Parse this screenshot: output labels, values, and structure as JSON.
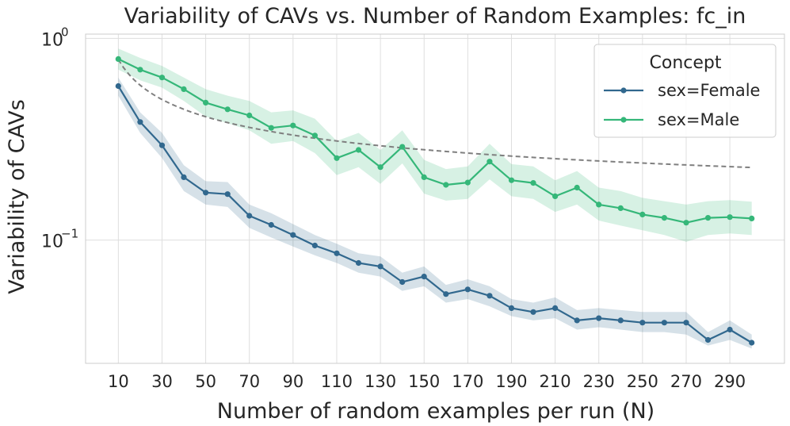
{
  "chart_data": {
    "type": "line",
    "title": "Variability of CAVs vs. Number of Random Examples: fc_in",
    "xlabel": "Number of random examples per run (N)",
    "ylabel": "Variability of CAVs",
    "yscale": "log",
    "xlim": [
      -5,
      315
    ],
    "ylim": [
      0.0245,
      1.05
    ],
    "x_ticks": [
      10,
      30,
      50,
      70,
      90,
      110,
      130,
      150,
      170,
      190,
      210,
      230,
      250,
      270,
      290
    ],
    "y_ticks": [
      {
        "value": 1.0,
        "base": "10",
        "exp": "0"
      },
      {
        "value": 0.1,
        "base": "10",
        "exp": "−1"
      }
    ],
    "grid": true,
    "legend": {
      "title": "Concept",
      "position": "top-right"
    },
    "x": [
      10,
      20,
      30,
      40,
      50,
      60,
      70,
      80,
      90,
      100,
      110,
      120,
      130,
      140,
      150,
      160,
      170,
      180,
      190,
      200,
      210,
      220,
      230,
      240,
      250,
      260,
      270,
      280,
      290,
      300
    ],
    "series": [
      {
        "name": "sex=Female",
        "color": "#31688e",
        "values": [
          0.58,
          0.385,
          0.295,
          0.205,
          0.172,
          0.169,
          0.132,
          0.119,
          0.106,
          0.094,
          0.086,
          0.077,
          0.074,
          0.062,
          0.066,
          0.054,
          0.057,
          0.053,
          0.046,
          0.044,
          0.046,
          0.04,
          0.041,
          0.04,
          0.039,
          0.039,
          0.039,
          0.032,
          0.036,
          0.031
        ],
        "lower": [
          0.52,
          0.34,
          0.255,
          0.175,
          0.15,
          0.146,
          0.115,
          0.103,
          0.093,
          0.084,
          0.077,
          0.069,
          0.066,
          0.056,
          0.059,
          0.049,
          0.051,
          0.047,
          0.042,
          0.04,
          0.041,
          0.036,
          0.037,
          0.036,
          0.035,
          0.035,
          0.034,
          0.03,
          0.032,
          0.029
        ],
        "upper": [
          0.64,
          0.43,
          0.34,
          0.235,
          0.196,
          0.194,
          0.15,
          0.136,
          0.12,
          0.106,
          0.096,
          0.086,
          0.083,
          0.069,
          0.074,
          0.06,
          0.064,
          0.059,
          0.051,
          0.049,
          0.052,
          0.045,
          0.046,
          0.045,
          0.044,
          0.044,
          0.044,
          0.035,
          0.04,
          0.034
        ]
      },
      {
        "name": "sex=Male",
        "color": "#35b779",
        "values": [
          0.79,
          0.7,
          0.64,
          0.56,
          0.48,
          0.445,
          0.415,
          0.36,
          0.37,
          0.33,
          0.255,
          0.28,
          0.23,
          0.29,
          0.205,
          0.188,
          0.193,
          0.245,
          0.198,
          0.192,
          0.165,
          0.182,
          0.15,
          0.144,
          0.134,
          0.129,
          0.122,
          0.129,
          0.13,
          0.128
        ],
        "lower": [
          0.7,
          0.62,
          0.57,
          0.49,
          0.41,
          0.38,
          0.35,
          0.3,
          0.31,
          0.27,
          0.21,
          0.23,
          0.19,
          0.24,
          0.17,
          0.157,
          0.16,
          0.2,
          0.165,
          0.16,
          0.138,
          0.15,
          0.125,
          0.118,
          0.112,
          0.106,
          0.098,
          0.106,
          0.108,
          0.106
        ],
        "upper": [
          0.89,
          0.8,
          0.73,
          0.64,
          0.56,
          0.52,
          0.49,
          0.43,
          0.44,
          0.4,
          0.31,
          0.34,
          0.28,
          0.35,
          0.25,
          0.225,
          0.232,
          0.3,
          0.238,
          0.232,
          0.198,
          0.22,
          0.182,
          0.175,
          0.162,
          0.156,
          0.15,
          0.156,
          0.158,
          0.155
        ]
      }
    ],
    "reference_curve": {
      "style": "dashed",
      "color": "#7f7f7f",
      "model": "y = a + b / sqrt(N)",
      "a": 0.105,
      "b": 2.15
    }
  }
}
